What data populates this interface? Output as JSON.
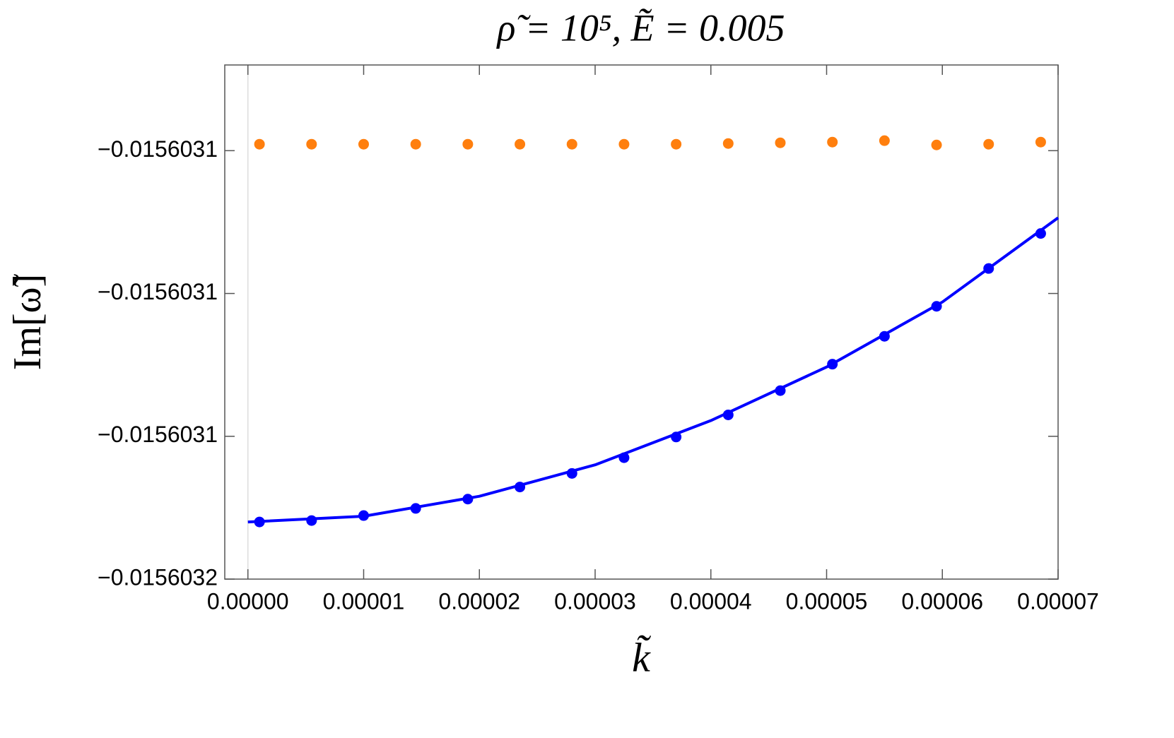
{
  "chart_data": {
    "type": "scatter",
    "title": "ρ̃ = 10⁵,  Ẽ = 0.005",
    "x_label": "k̃",
    "y_label": "Im[ω̃]",
    "xlim": [
      -2e-06,
      7e-05
    ],
    "ylim": [
      -0.01560316,
      -0.015603088
    ],
    "xticks": [
      {
        "value": 0,
        "label": "0.00000"
      },
      {
        "value": 1e-05,
        "label": "0.00001"
      },
      {
        "value": 2e-05,
        "label": "0.00002"
      },
      {
        "value": 3e-05,
        "label": "0.00003"
      },
      {
        "value": 4e-05,
        "label": "0.00004"
      },
      {
        "value": 5e-05,
        "label": "0.00005"
      },
      {
        "value": 6e-05,
        "label": "0.00006"
      },
      {
        "value": 7e-05,
        "label": "0.00007"
      }
    ],
    "yticks": [
      {
        "value": -0.01560316,
        "label": "−0.0156032"
      },
      {
        "value": -0.01560314,
        "label": "−0.0156031"
      },
      {
        "value": -0.01560312,
        "label": "−0.0156031"
      },
      {
        "value": -0.0156031,
        "label": "−0.0156031"
      }
    ],
    "series": [
      {
        "color": "#ff7f0e",
        "kind": "points",
        "x": [
          1e-06,
          5.5e-06,
          1e-05,
          1.45e-05,
          1.9e-05,
          2.35e-05,
          2.8e-05,
          3.25e-05,
          3.7e-05,
          4.15e-05,
          4.6e-05,
          5.05e-05,
          5.5e-05,
          5.95e-05,
          6.4e-05,
          6.85e-05
        ],
        "values": [
          -0.0156030991,
          -0.0156030991,
          -0.0156030991,
          -0.0156030991,
          -0.0156030991,
          -0.0156030991,
          -0.0156030991,
          -0.0156030991,
          -0.0156030991,
          -0.015603099,
          -0.0156030989,
          -0.0156030988,
          -0.0156030986,
          -0.0156030992,
          -0.0156030991,
          -0.0156030988
        ]
      },
      {
        "color": "#0000ff",
        "kind": "points",
        "x": [
          1e-06,
          5.5e-06,
          1e-05,
          1.45e-05,
          1.9e-05,
          2.35e-05,
          2.8e-05,
          3.25e-05,
          3.7e-05,
          4.15e-05,
          4.6e-05,
          5.05e-05,
          5.5e-05,
          5.95e-05,
          6.4e-05,
          6.85e-05
        ],
        "values": [
          -0.015603152,
          -0.0156031518,
          -0.0156031511,
          -0.0156031501,
          -0.0156031488,
          -0.0156031471,
          -0.0156031452,
          -0.015603143,
          -0.0156031401,
          -0.015603137,
          -0.0156031336,
          -0.0156031299,
          -0.015603126,
          -0.0156031218,
          -0.0156031165,
          -0.0156031116
        ]
      },
      {
        "color": "#0000ff",
        "kind": "line",
        "x": [
          0,
          1e-05,
          2e-05,
          3e-05,
          4e-05,
          5e-05,
          6e-05,
          7e-05
        ],
        "values": [
          -0.015603152,
          -0.0156031512,
          -0.0156031484,
          -0.015603144,
          -0.0156031378,
          -0.0156031303,
          -0.0156031212,
          -0.0156031094
        ]
      }
    ]
  }
}
